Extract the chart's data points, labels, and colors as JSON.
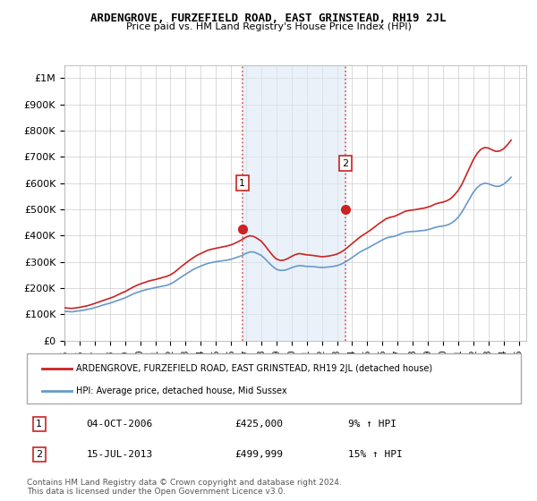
{
  "title": "ARDENGROVE, FURZEFIELD ROAD, EAST GRINSTEAD, RH19 2JL",
  "subtitle": "Price paid vs. HM Land Registry's House Price Index (HPI)",
  "ylabel_ticks": [
    "£0",
    "£100K",
    "£200K",
    "£300K",
    "£400K",
    "£500K",
    "£600K",
    "£700K",
    "£800K",
    "£900K",
    "£1M"
  ],
  "ytick_values": [
    0,
    100000,
    200000,
    300000,
    400000,
    500000,
    600000,
    700000,
    800000,
    900000,
    1000000
  ],
  "ylim": [
    0,
    1050000
  ],
  "xlim_start": 1995.0,
  "xlim_end": 2025.5,
  "xtick_years": [
    1995,
    1996,
    1997,
    1998,
    1999,
    2000,
    2001,
    2002,
    2003,
    2004,
    2005,
    2006,
    2007,
    2008,
    2009,
    2010,
    2011,
    2012,
    2013,
    2014,
    2015,
    2016,
    2017,
    2018,
    2019,
    2020,
    2021,
    2022,
    2023,
    2024,
    2025
  ],
  "sale1_x": 2006.75,
  "sale1_y": 425000,
  "sale1_label": "1",
  "sale2_x": 2013.54,
  "sale2_y": 499999,
  "sale2_label": "2",
  "vline_color": "#e05050",
  "vline_style": ":",
  "shade_color": "#dce9f5",
  "red_line_color": "#cc2222",
  "blue_line_color": "#6699cc",
  "legend_red_label": "ARDENGROVE, FURZEFIELD ROAD, EAST GRINSTEAD, RH19 2JL (detached house)",
  "legend_blue_label": "HPI: Average price, detached house, Mid Sussex",
  "table_row1": [
    "1",
    "04-OCT-2006",
    "£425,000",
    "9% ↑ HPI"
  ],
  "table_row2": [
    "2",
    "15-JUL-2013",
    "£499,999",
    "15% ↑ HPI"
  ],
  "footnote": "Contains HM Land Registry data © Crown copyright and database right 2024.\nThis data is licensed under the Open Government Licence v3.0.",
  "hpi_data_x": [
    1995.0,
    1995.25,
    1995.5,
    1995.75,
    1996.0,
    1996.25,
    1996.5,
    1996.75,
    1997.0,
    1997.25,
    1997.5,
    1997.75,
    1998.0,
    1998.25,
    1998.5,
    1998.75,
    1999.0,
    1999.25,
    1999.5,
    1999.75,
    2000.0,
    2000.25,
    2000.5,
    2000.75,
    2001.0,
    2001.25,
    2001.5,
    2001.75,
    2002.0,
    2002.25,
    2002.5,
    2002.75,
    2003.0,
    2003.25,
    2003.5,
    2003.75,
    2004.0,
    2004.25,
    2004.5,
    2004.75,
    2005.0,
    2005.25,
    2005.5,
    2005.75,
    2006.0,
    2006.25,
    2006.5,
    2006.75,
    2007.0,
    2007.25,
    2007.5,
    2007.75,
    2008.0,
    2008.25,
    2008.5,
    2008.75,
    2009.0,
    2009.25,
    2009.5,
    2009.75,
    2010.0,
    2010.25,
    2010.5,
    2010.75,
    2011.0,
    2011.25,
    2011.5,
    2011.75,
    2012.0,
    2012.25,
    2012.5,
    2012.75,
    2013.0,
    2013.25,
    2013.5,
    2013.75,
    2014.0,
    2014.25,
    2014.5,
    2014.75,
    2015.0,
    2015.25,
    2015.5,
    2015.75,
    2016.0,
    2016.25,
    2016.5,
    2016.75,
    2017.0,
    2017.25,
    2017.5,
    2017.75,
    2018.0,
    2018.25,
    2018.5,
    2018.75,
    2019.0,
    2019.25,
    2019.5,
    2019.75,
    2020.0,
    2020.25,
    2020.5,
    2020.75,
    2021.0,
    2021.25,
    2021.5,
    2021.75,
    2022.0,
    2022.25,
    2022.5,
    2022.75,
    2023.0,
    2023.25,
    2023.5,
    2023.75,
    2024.0,
    2024.25,
    2024.5
  ],
  "hpi_data_y": [
    112000,
    111000,
    110000,
    112000,
    114000,
    116000,
    119000,
    122000,
    126000,
    130000,
    135000,
    139000,
    143000,
    148000,
    153000,
    158000,
    163000,
    170000,
    177000,
    183000,
    188000,
    192000,
    196000,
    199000,
    202000,
    205000,
    208000,
    211000,
    216000,
    224000,
    234000,
    244000,
    253000,
    262000,
    271000,
    278000,
    284000,
    290000,
    295000,
    298000,
    301000,
    303000,
    305000,
    307000,
    310000,
    315000,
    320000,
    325000,
    333000,
    338000,
    338000,
    332000,
    325000,
    312000,
    297000,
    283000,
    272000,
    268000,
    268000,
    272000,
    278000,
    283000,
    286000,
    285000,
    283000,
    283000,
    282000,
    280000,
    279000,
    280000,
    281000,
    283000,
    286000,
    291000,
    298000,
    307000,
    317000,
    327000,
    337000,
    345000,
    352000,
    360000,
    368000,
    376000,
    384000,
    391000,
    395000,
    397000,
    402000,
    408000,
    413000,
    415000,
    416000,
    417000,
    419000,
    420000,
    423000,
    427000,
    432000,
    435000,
    437000,
    440000,
    446000,
    456000,
    470000,
    490000,
    515000,
    540000,
    565000,
    583000,
    595000,
    600000,
    598000,
    592000,
    588000,
    589000,
    596000,
    608000,
    623000
  ],
  "red_data_x": [
    1995.0,
    1995.25,
    1995.5,
    1995.75,
    1996.0,
    1996.25,
    1996.5,
    1996.75,
    1997.0,
    1997.25,
    1997.5,
    1997.75,
    1998.0,
    1998.25,
    1998.5,
    1998.75,
    1999.0,
    1999.25,
    1999.5,
    1999.75,
    2000.0,
    2000.25,
    2000.5,
    2000.75,
    2001.0,
    2001.25,
    2001.5,
    2001.75,
    2002.0,
    2002.25,
    2002.5,
    2002.75,
    2003.0,
    2003.25,
    2003.5,
    2003.75,
    2004.0,
    2004.25,
    2004.5,
    2004.75,
    2005.0,
    2005.25,
    2005.5,
    2005.75,
    2006.0,
    2006.25,
    2006.5,
    2006.75,
    2007.0,
    2007.25,
    2007.5,
    2007.75,
    2008.0,
    2008.25,
    2008.5,
    2008.75,
    2009.0,
    2009.25,
    2009.5,
    2009.75,
    2010.0,
    2010.25,
    2010.5,
    2010.75,
    2011.0,
    2011.25,
    2011.5,
    2011.75,
    2012.0,
    2012.25,
    2012.5,
    2012.75,
    2013.0,
    2013.25,
    2013.5,
    2013.75,
    2014.0,
    2014.25,
    2014.5,
    2014.75,
    2015.0,
    2015.25,
    2015.5,
    2015.75,
    2016.0,
    2016.25,
    2016.5,
    2016.75,
    2017.0,
    2017.25,
    2017.5,
    2017.75,
    2018.0,
    2018.25,
    2018.5,
    2018.75,
    2019.0,
    2019.25,
    2019.5,
    2019.75,
    2020.0,
    2020.25,
    2020.5,
    2020.75,
    2021.0,
    2021.25,
    2021.5,
    2021.75,
    2022.0,
    2022.25,
    2022.5,
    2022.75,
    2023.0,
    2023.25,
    2023.5,
    2023.75,
    2024.0,
    2024.25,
    2024.5
  ],
  "red_data_y": [
    125000,
    124000,
    123000,
    125000,
    127000,
    130000,
    133000,
    137000,
    142000,
    147000,
    152000,
    157000,
    162000,
    167000,
    174000,
    181000,
    187000,
    195000,
    203000,
    210000,
    216000,
    221000,
    226000,
    230000,
    233000,
    237000,
    241000,
    245000,
    251000,
    260000,
    272000,
    284000,
    295000,
    306000,
    316000,
    325000,
    332000,
    339000,
    345000,
    349000,
    352000,
    355000,
    358000,
    361000,
    365000,
    371000,
    378000,
    386000,
    395000,
    400000,
    397000,
    389000,
    379000,
    362000,
    343000,
    325000,
    311000,
    306000,
    307000,
    313000,
    321000,
    328000,
    332000,
    330000,
    327000,
    326000,
    324000,
    322000,
    320000,
    321000,
    323000,
    326000,
    330000,
    337000,
    346000,
    358000,
    370000,
    382000,
    394000,
    404000,
    413000,
    423000,
    434000,
    445000,
    455000,
    465000,
    470000,
    473000,
    479000,
    486000,
    493000,
    496000,
    498000,
    500000,
    503000,
    505000,
    509000,
    514000,
    521000,
    525000,
    528000,
    533000,
    541000,
    555000,
    572000,
    596000,
    627000,
    658000,
    689000,
    713000,
    729000,
    736000,
    734000,
    727000,
    721000,
    723000,
    731000,
    746000,
    764000
  ]
}
